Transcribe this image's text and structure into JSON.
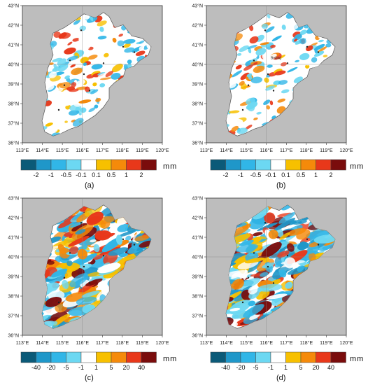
{
  "colors": {
    "ocean": "#bdbdbd",
    "land": "#ffffff",
    "border": "#555555"
  },
  "axes": {
    "x_ticks": [
      "113°E",
      "114°E",
      "115°E",
      "116°E",
      "117°E",
      "118°E",
      "119°E",
      "120°E"
    ],
    "y_ticks": [
      "36°N",
      "37°N",
      "38°N",
      "39°N",
      "40°N",
      "41°N",
      "42°N",
      "43°N"
    ]
  },
  "panels": [
    {
      "id": "a",
      "caption": "(a)",
      "unit": "mm",
      "scale_labels": [
        "-2",
        "-1",
        "-0.5",
        "-0.1",
        "0.1",
        "0.5",
        "1",
        "2"
      ],
      "scale_colors": [
        "#0b5a78",
        "#1f97c9",
        "#31b6e7",
        "#6cd8f2",
        "#ffffff",
        "#f7c000",
        "#f58a0a",
        "#e8381a",
        "#7a0c0c"
      ],
      "city_label": ""
    },
    {
      "id": "b",
      "caption": "(b)",
      "unit": "mm",
      "scale_labels": [
        "-2",
        "-1",
        "-0.5",
        "-0.1",
        "0.1",
        "0.5",
        "1",
        "2"
      ],
      "scale_colors": [
        "#0b5a78",
        "#1f97c9",
        "#31b6e7",
        "#6cd8f2",
        "#ffffff",
        "#f7c000",
        "#f58a0a",
        "#e8381a",
        "#7a0c0c"
      ],
      "city_label": "Beijing"
    },
    {
      "id": "c",
      "caption": "(c)",
      "unit": "mm",
      "scale_labels": [
        "-40",
        "-20",
        "-5",
        "-1",
        "1",
        "5",
        "20",
        "40"
      ],
      "scale_colors": [
        "#0b5a78",
        "#1f97c9",
        "#31b6e7",
        "#6cd8f2",
        "#ffffff",
        "#f7c000",
        "#f58a0a",
        "#e8381a",
        "#7a0c0c"
      ],
      "city_label": ""
    },
    {
      "id": "d",
      "caption": "(d)",
      "unit": "mm",
      "scale_labels": [
        "-40",
        "-20",
        "-5",
        "-1",
        "1",
        "5",
        "20",
        "40"
      ],
      "scale_colors": [
        "#0b5a78",
        "#1f97c9",
        "#31b6e7",
        "#6cd8f2",
        "#ffffff",
        "#f7c000",
        "#f58a0a",
        "#e8381a",
        "#7a0c0c"
      ],
      "city_label": ""
    }
  ]
}
